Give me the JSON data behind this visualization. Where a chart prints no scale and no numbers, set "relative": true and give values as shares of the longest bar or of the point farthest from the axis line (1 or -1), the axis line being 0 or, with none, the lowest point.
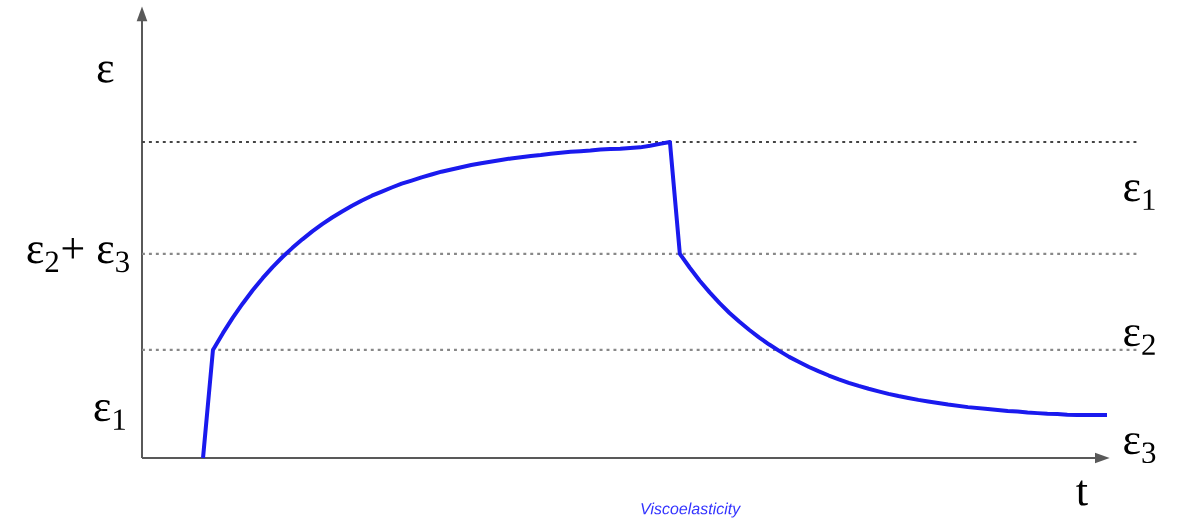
{
  "chart_data": {
    "type": "line",
    "relative": true,
    "ylabel": "ε",
    "xlabel": "t",
    "categories": [
      null,
      null,
      null,
      null,
      null,
      null,
      null,
      null,
      null,
      null,
      null,
      null,
      null,
      null,
      null,
      null,
      null,
      null,
      null,
      null,
      null,
      null,
      null,
      null,
      null,
      null,
      null,
      null,
      null,
      null,
      null,
      null,
      null,
      null,
      null,
      null,
      null,
      null,
      null,
      null,
      null,
      null,
      null,
      null,
      null,
      null,
      null,
      null,
      null,
      null,
      null,
      null,
      null,
      null,
      null,
      null,
      null,
      null,
      null,
      null,
      null,
      null,
      null,
      null,
      null,
      null,
      null,
      null,
      null,
      null,
      null,
      null,
      null,
      null,
      null,
      null,
      null,
      null,
      null,
      null,
      null,
      null,
      null,
      null,
      null,
      null,
      null,
      null,
      null,
      null,
      null,
      null
    ],
    "line_style": "solid",
    "marker": "none",
    "series": [
      {
        "color": "#1a1aee",
        "values": [
          0,
          0.342,
          0.395,
          0.444,
          0.489,
          0.531,
          0.569,
          0.604,
          0.636,
          0.665,
          0.692,
          0.717,
          0.74,
          0.761,
          0.78,
          0.798,
          0.815,
          0.83,
          0.843,
          0.856,
          0.868,
          0.878,
          0.888,
          0.897,
          0.906,
          0.913,
          0.92,
          0.927,
          0.933,
          0.938,
          0.943,
          0.948,
          0.952,
          0.956,
          0.959,
          0.963,
          0.966,
          0.969,
          0.971,
          0.973,
          0.976,
          0.978,
          0.979,
          0.981,
          0.983,
          0.988,
          0.994,
          1,
          0.646,
          0.602,
          0.561,
          0.524,
          0.49,
          0.459,
          0.431,
          0.405,
          0.381,
          0.359,
          0.339,
          0.32,
          0.304,
          0.288,
          0.274,
          0.261,
          0.249,
          0.238,
          0.228,
          0.219,
          0.211,
          0.203,
          0.196,
          0.19,
          0.184,
          0.179,
          0.174,
          0.169,
          0.165,
          0.161,
          0.158,
          0.155,
          0.152,
          0.149,
          0.147,
          0.144,
          0.142,
          0.14,
          0.139,
          0.137,
          0.136,
          0.136,
          0.136,
          0.136
        ]
      }
    ],
    "ref_lines": [
      {
        "axis": "y",
        "value": 1,
        "color": "#444444",
        "line_style": "dotted"
      },
      {
        "axis": "y",
        "value": 0.646,
        "color": "#888888",
        "line_style": "dotted"
      },
      {
        "axis": "y",
        "value": 0.342,
        "color": "#888888",
        "line_style": "dotted"
      }
    ],
    "annotations": [
      "ε$_{2}$+ ε$_{3}$",
      "ε$_{1}$",
      "ε$_{1}$",
      "ε$_{2}$",
      "ε$_{3}$",
      "Viscoelasticity"
    ]
  }
}
